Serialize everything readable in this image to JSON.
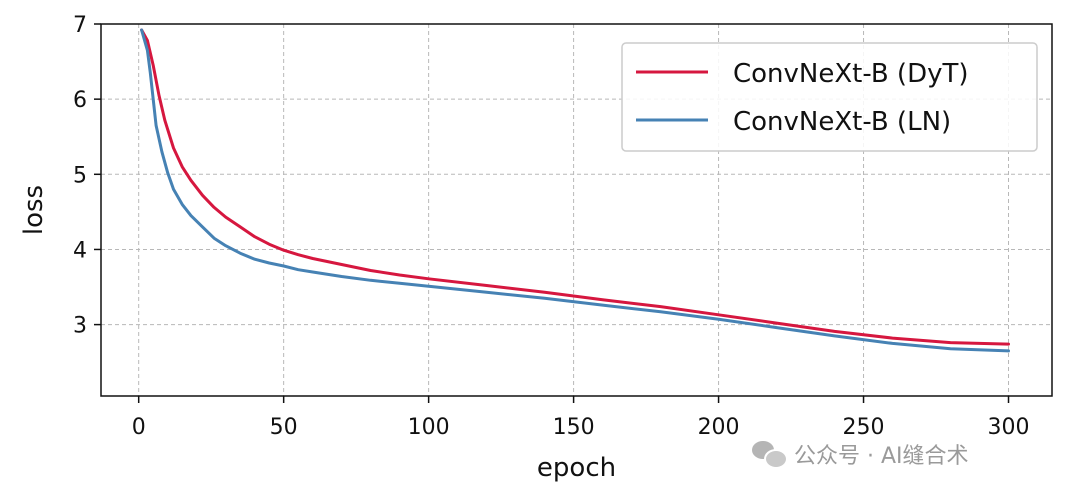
{
  "chart_data": {
    "type": "line",
    "title": "",
    "xlabel": "epoch",
    "ylabel": "loss",
    "xlim": [
      -13,
      315
    ],
    "ylim": [
      2.05,
      7.0
    ],
    "xticks": [
      0,
      50,
      100,
      150,
      200,
      250,
      300
    ],
    "yticks": [
      3,
      4,
      5,
      6,
      7
    ],
    "grid": true,
    "legend_position": "top-right",
    "series": [
      {
        "name": "ConvNeXt-B (DyT)",
        "color": "#d6173f",
        "x": [
          1,
          3,
          5,
          7,
          9,
          12,
          15,
          18,
          22,
          26,
          30,
          35,
          40,
          45,
          50,
          55,
          60,
          70,
          80,
          90,
          100,
          120,
          140,
          160,
          180,
          200,
          220,
          240,
          260,
          280,
          300
        ],
        "y": [
          6.92,
          6.78,
          6.45,
          6.05,
          5.72,
          5.35,
          5.1,
          4.92,
          4.72,
          4.56,
          4.43,
          4.3,
          4.17,
          4.07,
          3.99,
          3.93,
          3.88,
          3.8,
          3.72,
          3.66,
          3.61,
          3.52,
          3.43,
          3.33,
          3.24,
          3.13,
          3.02,
          2.91,
          2.82,
          2.76,
          2.74
        ]
      },
      {
        "name": "ConvNeXt-B (LN)",
        "color": "#4682b4",
        "x": [
          1,
          3,
          4,
          5,
          6,
          8,
          10,
          12,
          15,
          18,
          22,
          26,
          30,
          35,
          40,
          45,
          50,
          55,
          60,
          70,
          80,
          90,
          100,
          120,
          140,
          160,
          180,
          200,
          220,
          240,
          260,
          280,
          300
        ],
        "y": [
          6.92,
          6.65,
          6.35,
          6.0,
          5.65,
          5.3,
          5.02,
          4.8,
          4.6,
          4.45,
          4.3,
          4.15,
          4.05,
          3.95,
          3.87,
          3.82,
          3.78,
          3.73,
          3.7,
          3.64,
          3.59,
          3.55,
          3.51,
          3.43,
          3.35,
          3.26,
          3.17,
          3.07,
          2.96,
          2.85,
          2.75,
          2.68,
          2.65
        ]
      }
    ]
  },
  "watermark": {
    "text": "公众号 · AI缝合术",
    "icon": "wechat-icon"
  }
}
